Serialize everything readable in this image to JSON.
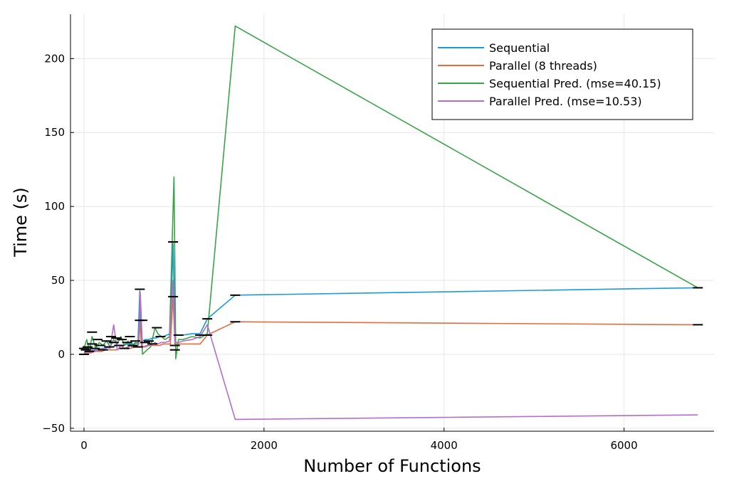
{
  "chart_data": {
    "type": "line",
    "xlabel": "Number of Functions",
    "ylabel": "Time (s)",
    "xlim": [
      -150,
      7000
    ],
    "ylim": [
      -52,
      230
    ],
    "xticks": [
      0,
      2000,
      4000,
      6000
    ],
    "yticks": [
      -50,
      0,
      50,
      100,
      150,
      200
    ],
    "xtick_labels": [
      "0",
      "2000",
      "4000",
      "6000"
    ],
    "ytick_labels": [
      "−50",
      "0",
      "50",
      "100",
      "150",
      "200"
    ],
    "grid": true,
    "legend_position": "top-right",
    "colors": {
      "Sequential": "#1a9bd7",
      "Parallel (8 threads)": "#e46c3f",
      "Sequential Pred. (mse=40.15)": "#3aa34a",
      "Parallel Pred. (mse=10.53)": "#b86bcf"
    },
    "series": [
      {
        "name": "Sequential",
        "x": [
          0,
          40,
          80,
          120,
          160,
          200,
          240,
          280,
          320,
          360,
          400,
          440,
          480,
          520,
          560,
          600,
          620,
          640,
          680,
          720,
          760,
          800,
          840,
          880,
          920,
          960,
          990,
          1010,
          1030,
          1100,
          1200,
          1290,
          1370,
          1680,
          6820
        ],
        "y": [
          1,
          2,
          2,
          3,
          3,
          4,
          4,
          5,
          5,
          6,
          6,
          6,
          7,
          7,
          7,
          8,
          43,
          9,
          10,
          10,
          11,
          11,
          12,
          12,
          13,
          14,
          75,
          14,
          13,
          13,
          14,
          14,
          24,
          40,
          45
        ]
      },
      {
        "name": "Parallel (8 threads)",
        "x": [
          0,
          40,
          80,
          120,
          160,
          200,
          240,
          280,
          320,
          360,
          400,
          440,
          480,
          520,
          560,
          600,
          620,
          640,
          680,
          720,
          760,
          800,
          840,
          880,
          920,
          960,
          990,
          1010,
          1030,
          1100,
          1200,
          1290,
          1370,
          1680,
          6820
        ],
        "y": [
          0,
          1,
          1,
          2,
          2,
          2,
          3,
          3,
          3,
          3,
          4,
          4,
          4,
          4,
          5,
          5,
          22,
          5,
          5,
          6,
          6,
          6,
          6,
          7,
          7,
          7,
          39,
          7,
          7,
          7,
          7,
          7,
          13,
          22,
          20
        ]
      },
      {
        "name": "Sequential Pred. (mse=40.15)",
        "x": [
          0,
          30,
          60,
          90,
          130,
          170,
          210,
          250,
          290,
          330,
          370,
          410,
          450,
          490,
          530,
          570,
          610,
          625,
          650,
          700,
          740,
          790,
          820,
          860,
          900,
          950,
          1000,
          1020,
          1050,
          1100,
          1200,
          1290,
          1370,
          1680,
          6820
        ],
        "y": [
          4,
          10,
          3,
          12,
          4,
          8,
          6,
          9,
          5,
          10,
          7,
          12,
          6,
          9,
          5,
          8,
          7,
          40,
          0,
          3,
          5,
          18,
          14,
          12,
          10,
          12,
          120,
          -3,
          10,
          10,
          12,
          11,
          14,
          222,
          45
        ]
      },
      {
        "name": "Parallel Pred. (mse=10.53)",
        "x": [
          0,
          30,
          60,
          90,
          130,
          170,
          210,
          250,
          290,
          330,
          370,
          410,
          450,
          490,
          530,
          570,
          610,
          625,
          650,
          700,
          740,
          790,
          820,
          860,
          900,
          950,
          990,
          1010,
          1050,
          1100,
          1200,
          1290,
          1370,
          1680,
          6820
        ],
        "y": [
          0,
          2,
          1,
          3,
          2,
          4,
          3,
          5,
          4,
          20,
          3,
          6,
          4,
          5,
          6,
          5,
          7,
          42,
          5,
          6,
          6,
          8,
          7,
          8,
          8,
          9,
          50,
          8,
          8,
          9,
          10,
          12,
          20,
          -44,
          -41
        ]
      }
    ],
    "error_bar_points": [
      {
        "x": 0,
        "y": 0
      },
      {
        "x": 0,
        "y": 4
      },
      {
        "x": 20,
        "y": 3
      },
      {
        "x": 40,
        "y": 5
      },
      {
        "x": 60,
        "y": 2
      },
      {
        "x": 90,
        "y": 15
      },
      {
        "x": 90,
        "y": 7
      },
      {
        "x": 120,
        "y": 4
      },
      {
        "x": 150,
        "y": 10
      },
      {
        "x": 180,
        "y": 6
      },
      {
        "x": 210,
        "y": 3
      },
      {
        "x": 250,
        "y": 9
      },
      {
        "x": 280,
        "y": 5
      },
      {
        "x": 300,
        "y": 12
      },
      {
        "x": 330,
        "y": 8
      },
      {
        "x": 360,
        "y": 11
      },
      {
        "x": 390,
        "y": 6
      },
      {
        "x": 420,
        "y": 10
      },
      {
        "x": 450,
        "y": 4
      },
      {
        "x": 480,
        "y": 8
      },
      {
        "x": 510,
        "y": 12
      },
      {
        "x": 540,
        "y": 6
      },
      {
        "x": 570,
        "y": 9
      },
      {
        "x": 600,
        "y": 5
      },
      {
        "x": 620,
        "y": 44
      },
      {
        "x": 620,
        "y": 23
      },
      {
        "x": 650,
        "y": 23
      },
      {
        "x": 680,
        "y": 8
      },
      {
        "x": 720,
        "y": 9
      },
      {
        "x": 760,
        "y": 7
      },
      {
        "x": 810,
        "y": 18
      },
      {
        "x": 850,
        "y": 12
      },
      {
        "x": 990,
        "y": 76
      },
      {
        "x": 990,
        "y": 39
      },
      {
        "x": 1010,
        "y": 6
      },
      {
        "x": 1010,
        "y": 3
      },
      {
        "x": 1050,
        "y": 13
      },
      {
        "x": 1290,
        "y": 13
      },
      {
        "x": 1370,
        "y": 24
      },
      {
        "x": 1370,
        "y": 13
      },
      {
        "x": 1680,
        "y": 40
      },
      {
        "x": 1680,
        "y": 22
      },
      {
        "x": 6820,
        "y": 45
      },
      {
        "x": 6820,
        "y": 20
      }
    ]
  }
}
